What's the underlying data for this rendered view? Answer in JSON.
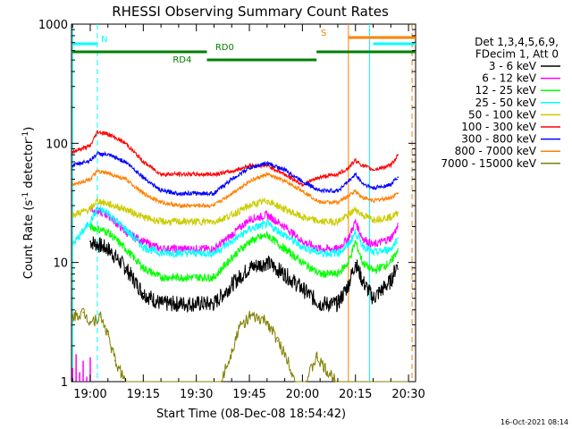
{
  "chart_data": {
    "type": "line",
    "title": "RHESSI Observing Summary Count Rates",
    "xlabel": "Start Time (08-Dec-08 18:54:42)",
    "ylabel": "Count Rate (s⁻¹ detector⁻¹)",
    "ylabel_parts": {
      "main": "Count Rate (s",
      "exp1": "-1",
      "mid": " detector",
      "exp2": "-1",
      "end": ")"
    },
    "yscale": "log",
    "ylim": [
      1,
      1000
    ],
    "xlim": [
      "18:54:42",
      "20:32:00"
    ],
    "x_ticks": [
      "19:00",
      "19:15",
      "19:30",
      "19:45",
      "20:00",
      "20:15",
      "20:30"
    ],
    "y_ticks": [
      "1",
      "10",
      "100",
      "1000"
    ],
    "footer_timestamp": "16-Oct-2021 08:14",
    "legend": {
      "header": [
        "Det 1,3,4,5,6,9,",
        "FDecim 1, Att 0"
      ],
      "entries": [
        {
          "label": "3 - 6 keV",
          "color": "#000000"
        },
        {
          "label": "6 - 12 keV",
          "color": "#ff00ff"
        },
        {
          "label": "12 - 25 keV",
          "color": "#00ff00"
        },
        {
          "label": "25 - 50 keV",
          "color": "#00ffff"
        },
        {
          "label": "50 - 100 keV",
          "color": "#cccc00"
        },
        {
          "label": "100 - 300 keV",
          "color": "#ff0000"
        },
        {
          "label": "300 - 800 keV",
          "color": "#0000ff"
        },
        {
          "label": "800 - 7000 keV",
          "color": "#ff8000"
        },
        {
          "label": "7000 - 15000 keV",
          "color": "#808000"
        }
      ]
    },
    "series": [
      {
        "name": "3 - 6 keV",
        "color": "#000000",
        "points": [
          [
            "19:00",
            15
          ],
          [
            "19:05",
            13
          ],
          [
            "19:10",
            9
          ],
          [
            "19:15",
            5.5
          ],
          [
            "19:20",
            4.5
          ],
          [
            "19:25",
            4.5
          ],
          [
            "19:30",
            4.5
          ],
          [
            "19:35",
            4.5
          ],
          [
            "19:40",
            6.5
          ],
          [
            "19:45",
            9
          ],
          [
            "19:50",
            10
          ],
          [
            "19:55",
            8
          ],
          [
            "20:00",
            6
          ],
          [
            "20:05",
            4.5
          ],
          [
            "20:10",
            4.5
          ],
          [
            "20:13",
            6.5
          ],
          [
            "20:15",
            10
          ],
          [
            "20:17",
            7
          ],
          [
            "20:20",
            5
          ],
          [
            "20:25",
            7
          ],
          [
            "20:27",
            10
          ]
        ]
      },
      {
        "name": "6 - 12 keV",
        "color": "#ff00ff",
        "points": [
          [
            "19:00",
            28
          ],
          [
            "19:05",
            25
          ],
          [
            "19:10",
            18
          ],
          [
            "19:15",
            15
          ],
          [
            "19:20",
            13
          ],
          [
            "19:25",
            13
          ],
          [
            "19:30",
            13
          ],
          [
            "19:35",
            13
          ],
          [
            "19:40",
            17
          ],
          [
            "19:45",
            23
          ],
          [
            "19:50",
            25
          ],
          [
            "19:55",
            20
          ],
          [
            "20:00",
            15
          ],
          [
            "20:05",
            13
          ],
          [
            "20:10",
            13
          ],
          [
            "20:13",
            16
          ],
          [
            "20:15",
            22
          ],
          [
            "20:17",
            16
          ],
          [
            "20:20",
            14
          ],
          [
            "20:25",
            16
          ],
          [
            "20:27",
            20
          ]
        ]
      },
      {
        "name": "12 - 25 keV",
        "color": "#00ff00",
        "points": [
          [
            "19:00",
            20
          ],
          [
            "19:05",
            18
          ],
          [
            "19:10",
            13
          ],
          [
            "19:15",
            9
          ],
          [
            "19:20",
            7.5
          ],
          [
            "19:25",
            7.5
          ],
          [
            "19:30",
            7.5
          ],
          [
            "19:35",
            7.5
          ],
          [
            "19:40",
            11
          ],
          [
            "19:45",
            15
          ],
          [
            "19:50",
            17
          ],
          [
            "19:55",
            13
          ],
          [
            "20:00",
            10
          ],
          [
            "20:05",
            8
          ],
          [
            "20:10",
            8
          ],
          [
            "20:13",
            10
          ],
          [
            "20:15",
            15
          ],
          [
            "20:17",
            10
          ],
          [
            "20:20",
            8.5
          ],
          [
            "20:25",
            10
          ],
          [
            "20:27",
            13
          ]
        ]
      },
      {
        "name": "25 - 50 keV",
        "color": "#00ffff",
        "points": [
          [
            "18:55",
            14
          ],
          [
            "19:00",
            22
          ],
          [
            "19:02",
            28
          ],
          [
            "19:05",
            26
          ],
          [
            "19:10",
            19
          ],
          [
            "19:15",
            13.5
          ],
          [
            "19:20",
            12
          ],
          [
            "19:25",
            12
          ],
          [
            "19:30",
            12
          ],
          [
            "19:35",
            12
          ],
          [
            "19:40",
            15
          ],
          [
            "19:45",
            19
          ],
          [
            "19:50",
            21
          ],
          [
            "19:55",
            17
          ],
          [
            "20:00",
            13.5
          ],
          [
            "20:05",
            12
          ],
          [
            "20:10",
            12
          ],
          [
            "20:13",
            14
          ],
          [
            "20:15",
            18
          ],
          [
            "20:17",
            14
          ],
          [
            "20:20",
            12
          ],
          [
            "20:25",
            13
          ],
          [
            "20:27",
            16
          ]
        ]
      },
      {
        "name": "50 - 100 keV",
        "color": "#cccc00",
        "points": [
          [
            "18:55",
            25
          ],
          [
            "19:00",
            28
          ],
          [
            "19:02",
            33
          ],
          [
            "19:05",
            31
          ],
          [
            "19:10",
            28
          ],
          [
            "19:15",
            24
          ],
          [
            "19:20",
            22
          ],
          [
            "19:25",
            22
          ],
          [
            "19:30",
            22
          ],
          [
            "19:35",
            22
          ],
          [
            "19:40",
            25
          ],
          [
            "19:45",
            30
          ],
          [
            "19:50",
            33
          ],
          [
            "19:55",
            28
          ],
          [
            "20:00",
            24
          ],
          [
            "20:05",
            22
          ],
          [
            "20:10",
            22
          ],
          [
            "20:13",
            25
          ],
          [
            "20:15",
            28
          ],
          [
            "20:17",
            25
          ],
          [
            "20:20",
            23
          ],
          [
            "20:25",
            24
          ],
          [
            "20:27",
            26
          ]
        ]
      },
      {
        "name": "100 - 300 keV",
        "color": "#ff0000",
        "points": [
          [
            "18:55",
            85
          ],
          [
            "19:00",
            95
          ],
          [
            "19:02",
            125
          ],
          [
            "19:05",
            120
          ],
          [
            "19:10",
            100
          ],
          [
            "19:15",
            70
          ],
          [
            "19:20",
            55
          ],
          [
            "19:25",
            55
          ],
          [
            "19:30",
            55
          ],
          [
            "19:35",
            55
          ],
          [
            "19:40",
            58
          ],
          [
            "19:45",
            65
          ],
          [
            "19:50",
            65
          ],
          [
            "19:55",
            55
          ],
          [
            "20:00",
            45
          ],
          [
            "20:05",
            52
          ],
          [
            "20:10",
            55
          ],
          [
            "20:13",
            62
          ],
          [
            "20:15",
            72
          ],
          [
            "20:17",
            65
          ],
          [
            "20:20",
            60
          ],
          [
            "20:25",
            65
          ],
          [
            "20:27",
            80
          ]
        ]
      },
      {
        "name": "300 - 800 keV",
        "color": "#0000ff",
        "points": [
          [
            "18:55",
            65
          ],
          [
            "19:00",
            72
          ],
          [
            "19:02",
            82
          ],
          [
            "19:05",
            80
          ],
          [
            "19:10",
            70
          ],
          [
            "19:15",
            52
          ],
          [
            "19:20",
            40
          ],
          [
            "19:25",
            38
          ],
          [
            "19:30",
            38
          ],
          [
            "19:35",
            38
          ],
          [
            "19:40",
            50
          ],
          [
            "19:45",
            62
          ],
          [
            "19:50",
            68
          ],
          [
            "19:55",
            60
          ],
          [
            "20:00",
            48
          ],
          [
            "20:05",
            40
          ],
          [
            "20:10",
            40
          ],
          [
            "20:13",
            48
          ],
          [
            "20:15",
            55
          ],
          [
            "20:17",
            46
          ],
          [
            "20:20",
            42
          ],
          [
            "20:25",
            45
          ],
          [
            "20:27",
            52
          ]
        ]
      },
      {
        "name": "800 - 7000 keV",
        "color": "#ff8000",
        "points": [
          [
            "18:55",
            45
          ],
          [
            "19:00",
            50
          ],
          [
            "19:02",
            58
          ],
          [
            "19:05",
            56
          ],
          [
            "19:10",
            50
          ],
          [
            "19:15",
            38
          ],
          [
            "19:20",
            32
          ],
          [
            "19:25",
            30
          ],
          [
            "19:30",
            30
          ],
          [
            "19:35",
            30
          ],
          [
            "19:40",
            38
          ],
          [
            "19:45",
            48
          ],
          [
            "19:50",
            55
          ],
          [
            "19:55",
            48
          ],
          [
            "20:00",
            40
          ],
          [
            "20:05",
            32
          ],
          [
            "20:10",
            32
          ],
          [
            "20:13",
            36
          ],
          [
            "20:15",
            40
          ],
          [
            "20:17",
            35
          ],
          [
            "20:20",
            33
          ],
          [
            "20:25",
            35
          ],
          [
            "20:27",
            38
          ]
        ]
      },
      {
        "name": "7000 - 15000 keV",
        "color": "#808000",
        "points": [
          [
            "18:55",
            3.5
          ],
          [
            "18:58",
            3.8
          ],
          [
            "19:00",
            3.2
          ],
          [
            "19:03",
            3.5
          ],
          [
            "19:05",
            2.5
          ],
          [
            "19:07",
            1.5
          ],
          [
            "19:10",
            1
          ],
          [
            "19:37",
            1
          ],
          [
            "19:40",
            1.8
          ],
          [
            "19:42",
            2.8
          ],
          [
            "19:45",
            3.5
          ],
          [
            "19:50",
            3.2
          ],
          [
            "19:53",
            2.2
          ],
          [
            "19:56",
            1.5
          ],
          [
            "19:58",
            1
          ],
          [
            "20:01",
            1
          ],
          [
            "20:04",
            1.6
          ],
          [
            "20:07",
            1.2
          ],
          [
            "20:10",
            1
          ],
          [
            "20:32",
            1
          ]
        ]
      }
    ],
    "magenta_low_segment": {
      "x_start": "18:55",
      "x_end": "19:00",
      "values": [
        1.3,
        1.7,
        1.2,
        1.5,
        1.1,
        1.6
      ]
    },
    "flag_lines": [
      {
        "label": "N",
        "color": "#00ffff",
        "segments": [
          [
            "18:55",
            "19:02"
          ]
        ],
        "level": "top",
        "label_at": "19:04"
      },
      {
        "label": "RD0",
        "color": "#008000",
        "segments": [
          [
            "18:55",
            "19:33"
          ],
          [
            "20:04",
            "20:32"
          ]
        ],
        "level": "upper",
        "label_at": "19:38"
      },
      {
        "label": "RD4",
        "color": "#008000",
        "segments": [
          [
            "19:33",
            "20:04"
          ]
        ],
        "level": "lower",
        "label_at": "19:26"
      },
      {
        "label": "S",
        "color": "#ff8000",
        "segments": [
          [
            "20:13",
            "20:32"
          ]
        ],
        "level": "top2",
        "label_at": "20:06"
      },
      {
        "label": "",
        "color": "#00ffff",
        "segments": [
          [
            "20:20",
            "20:32"
          ]
        ],
        "level": "mid",
        "label_at": ""
      }
    ],
    "vertical_markers": [
      {
        "x": "18:55",
        "color": "#00ffff",
        "style": "solid"
      },
      {
        "x": "19:02",
        "color": "#00ffff",
        "style": "dashed"
      },
      {
        "x": "20:13",
        "color": "#ff8000",
        "style": "solid"
      },
      {
        "x": "20:19",
        "color": "#00ffff",
        "style": "solid"
      },
      {
        "x": "20:31",
        "color": "#ff8000",
        "style": "dashed"
      }
    ]
  }
}
